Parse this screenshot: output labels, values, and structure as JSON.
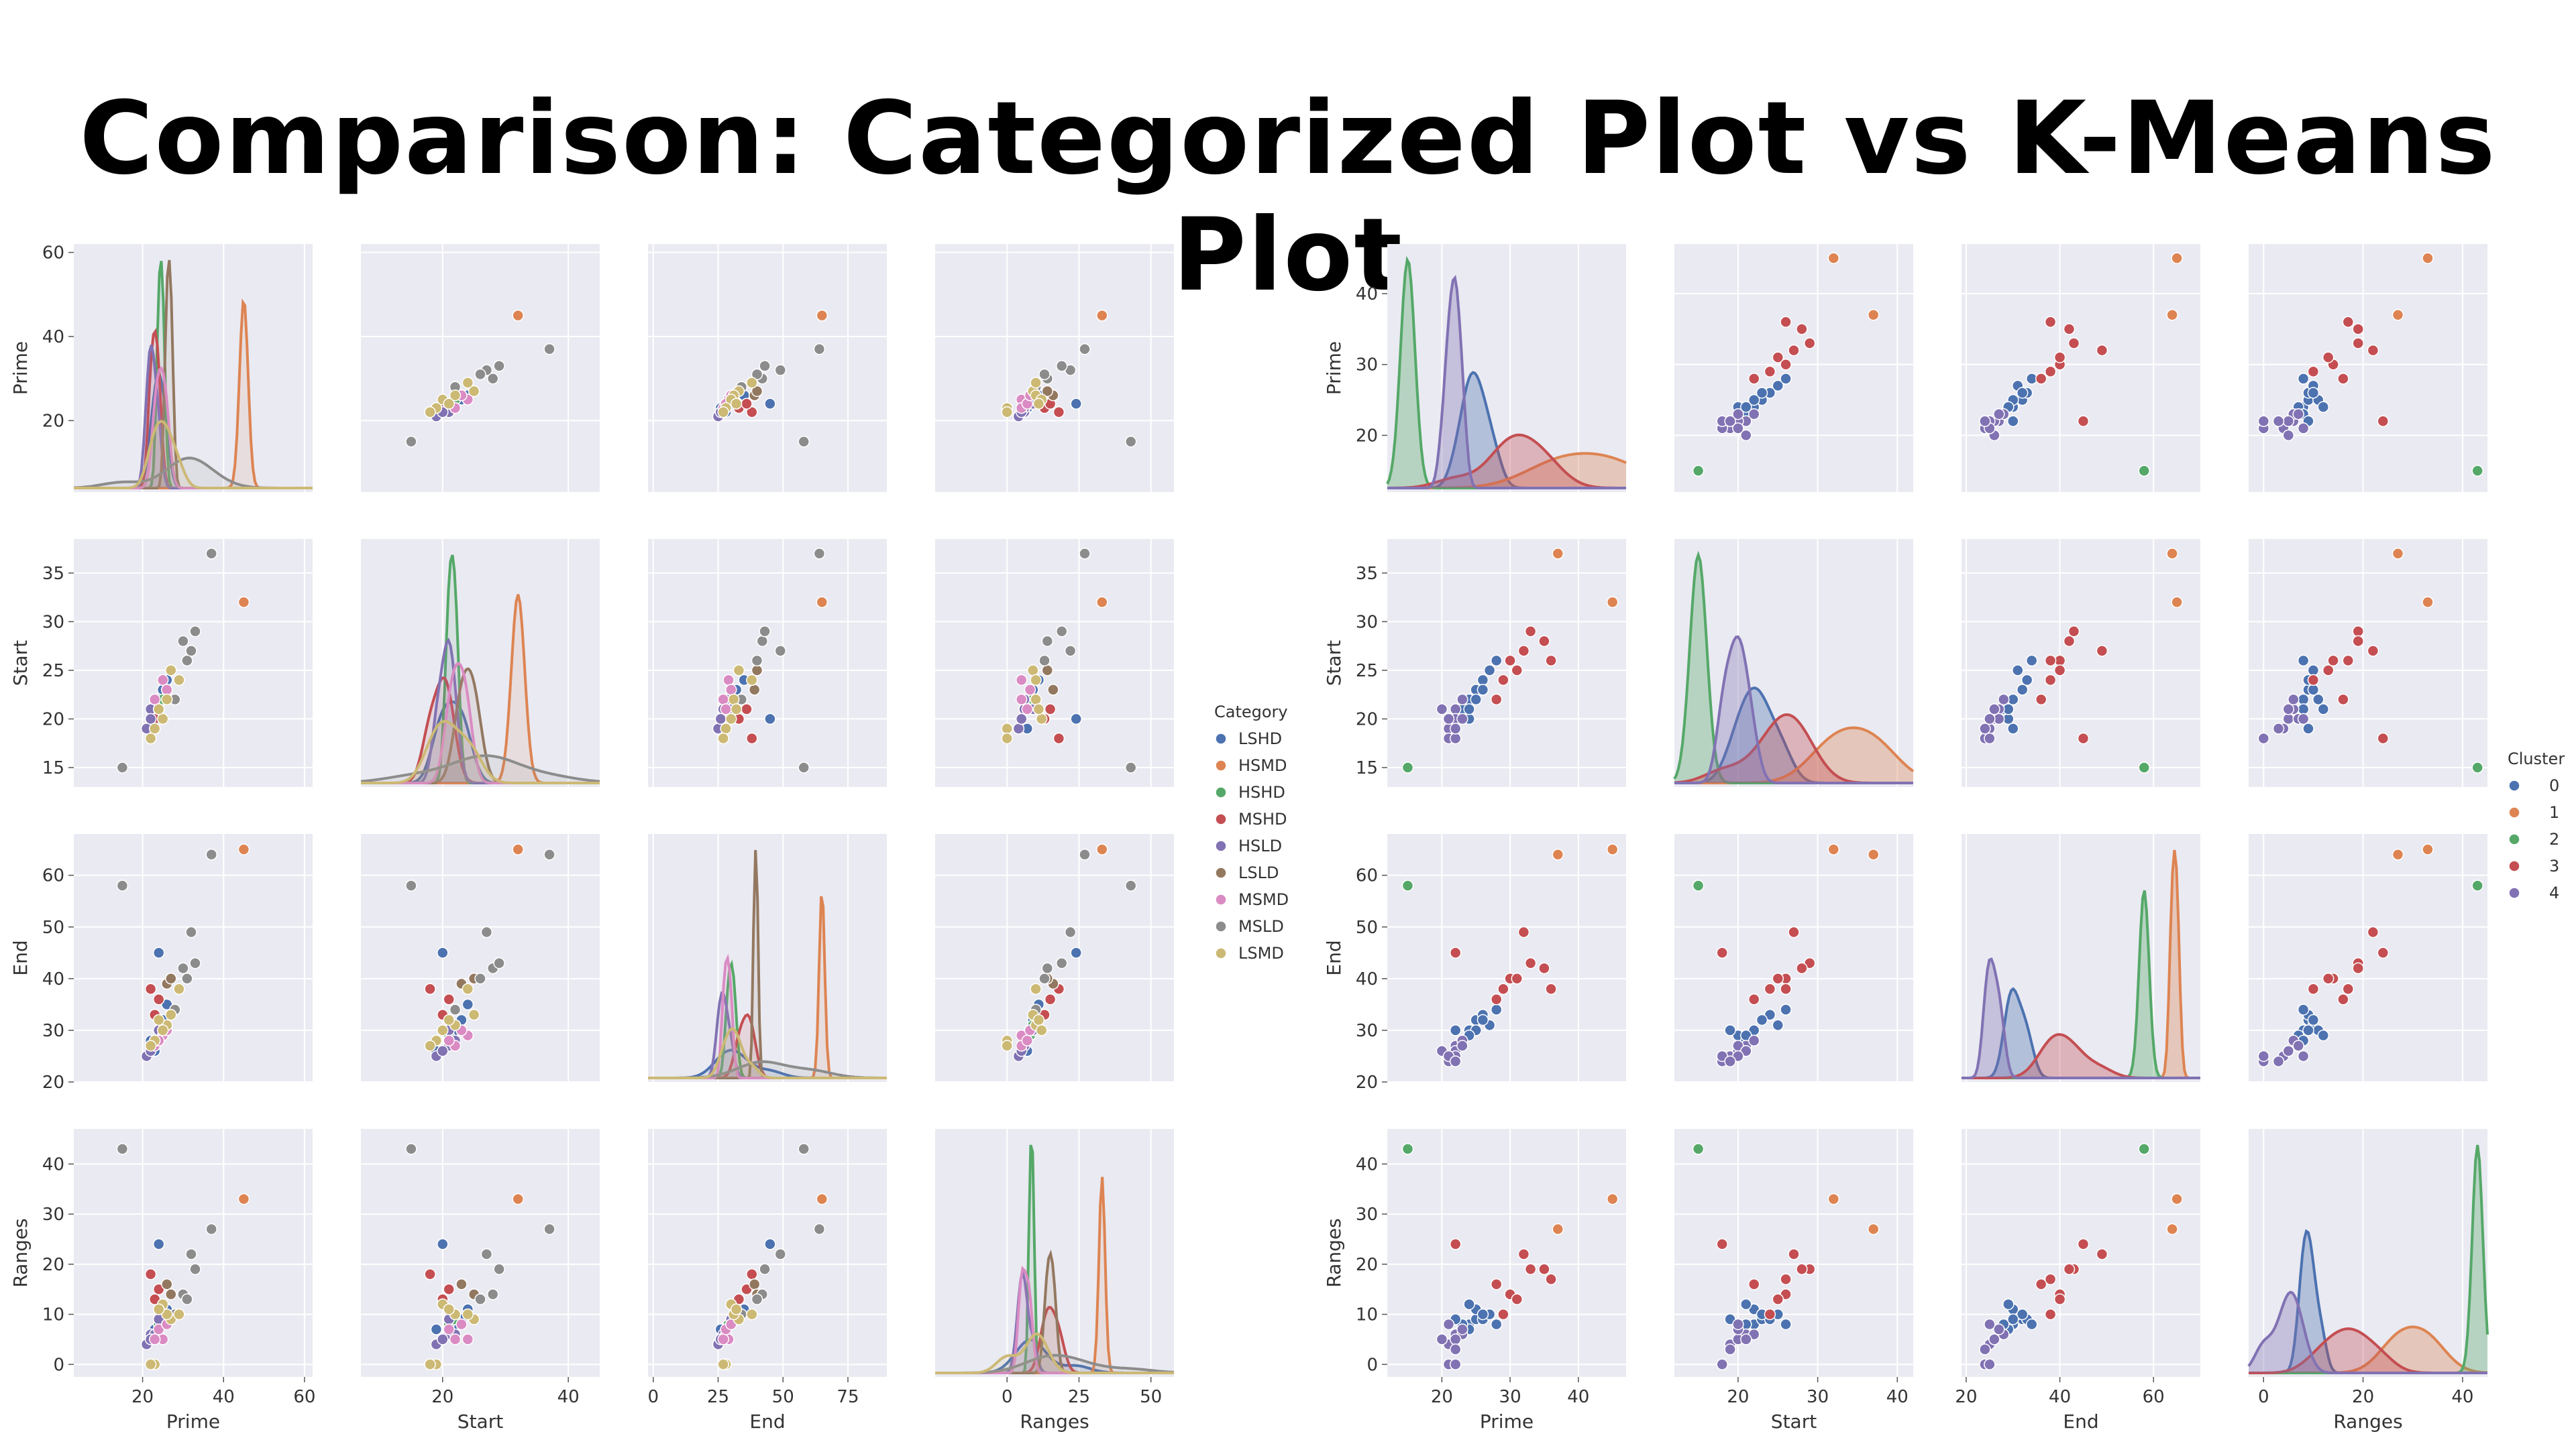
{
  "title": "Comparison: Categorized Plot vs K-Means Plot",
  "chart_data": [
    {
      "type": "scatter",
      "kind": "pairplot",
      "variables": [
        "Prime",
        "Start",
        "End",
        "Ranges"
      ],
      "limits": {
        "Prime": [
          3,
          62
        ],
        "Start": [
          13,
          38.5
        ],
        "End": [
          20,
          68
        ],
        "Ranges": [
          -2.5,
          47
        ]
      },
      "ticks": {
        "Prime": [
          20,
          40,
          60
        ],
        "Start": [
          15,
          20,
          25,
          30,
          35
        ],
        "End": [
          20,
          30,
          40,
          50,
          60
        ],
        "Ranges": [
          0,
          10,
          20,
          30,
          40
        ]
      },
      "xlims": {
        "Prime": [
          3,
          62
        ],
        "Start": [
          7,
          45
        ],
        "End": [
          -2,
          90
        ],
        "Ranges": [
          -25,
          58
        ]
      },
      "xticks": {
        "Prime": [
          20,
          40,
          60
        ],
        "Start": [
          20,
          40
        ],
        "End": [
          0,
          25,
          50,
          75
        ],
        "Ranges": [
          0,
          25,
          50
        ]
      },
      "legend": {
        "title": "Category",
        "placement": "right",
        "entries": [
          "LSHD",
          "HSMD",
          "HSHD",
          "MSHD",
          "HSLD",
          "LSLD",
          "MSMD",
          "MSLD",
          "LSMD"
        ]
      },
      "colors": [
        "#4c72b0",
        "#dd8452",
        "#55a868",
        "#c44e52",
        "#8172b3",
        "#937860",
        "#da8bc3",
        "#8c8c8c",
        "#ccb974"
      ],
      "points": [
        [
          24,
          22,
          30,
          8,
          0
        ],
        [
          25,
          23,
          32,
          9,
          0
        ],
        [
          24,
          20,
          45,
          24,
          0
        ],
        [
          23,
          19,
          26,
          7,
          0
        ],
        [
          22,
          21,
          28,
          6,
          0
        ],
        [
          26,
          24,
          35,
          11,
          0
        ],
        [
          45,
          32,
          65,
          33,
          1
        ],
        [
          24,
          21,
          29,
          8,
          2
        ],
        [
          25,
          22,
          31,
          9,
          2
        ],
        [
          22,
          18,
          38,
          18,
          3
        ],
        [
          23,
          20,
          33,
          13,
          3
        ],
        [
          24,
          21,
          36,
          15,
          3
        ],
        [
          21,
          19,
          25,
          4,
          4
        ],
        [
          22,
          21,
          27,
          6,
          4
        ],
        [
          23,
          22,
          28,
          6,
          4
        ],
        [
          24,
          21,
          30,
          9,
          4
        ],
        [
          22,
          20,
          26,
          5,
          4
        ],
        [
          26,
          23,
          39,
          16,
          5
        ],
        [
          27,
          25,
          40,
          14,
          5
        ],
        [
          25,
          24,
          29,
          5,
          6
        ],
        [
          23,
          22,
          27,
          5,
          6
        ],
        [
          24,
          21,
          28,
          7,
          6
        ],
        [
          26,
          23,
          30,
          8,
          6
        ],
        [
          37,
          37,
          64,
          27,
          7
        ],
        [
          15,
          15,
          58,
          43,
          7
        ],
        [
          30,
          28,
          42,
          14,
          7
        ],
        [
          32,
          27,
          49,
          22,
          7
        ],
        [
          33,
          29,
          43,
          19,
          7
        ],
        [
          31,
          26,
          40,
          13,
          7
        ],
        [
          28,
          22,
          34,
          10,
          7
        ],
        [
          27,
          25,
          33,
          9,
          8
        ],
        [
          29,
          24,
          38,
          10,
          8
        ],
        [
          26,
          22,
          31,
          10,
          8
        ],
        [
          25,
          20,
          30,
          12,
          8
        ],
        [
          24,
          21,
          32,
          11,
          8
        ],
        [
          23,
          19,
          28,
          0,
          8
        ],
        [
          22,
          18,
          27,
          0,
          8
        ]
      ],
      "xlabels": [
        "Prime",
        "Start",
        "End",
        "Ranges"
      ],
      "ylabels": [
        "Prime",
        "Start",
        "End",
        "Ranges"
      ]
    },
    {
      "type": "scatter",
      "kind": "pairplot",
      "variables": [
        "Prime",
        "Start",
        "End",
        "Ranges"
      ],
      "limits": {
        "Prime": [
          12,
          47
        ],
        "Start": [
          13,
          38.5
        ],
        "End": [
          20,
          68
        ],
        "Ranges": [
          -2.5,
          47
        ]
      },
      "ticks": {
        "Prime": [
          20,
          30,
          40
        ],
        "Start": [
          15,
          20,
          25,
          30,
          35
        ],
        "End": [
          20,
          30,
          40,
          50,
          60
        ],
        "Ranges": [
          0,
          10,
          20,
          30,
          40
        ]
      },
      "xlims": {
        "Prime": [
          12,
          47
        ],
        "Start": [
          12,
          42
        ],
        "End": [
          19,
          70
        ],
        "Ranges": [
          -3,
          45
        ]
      },
      "xticks": {
        "Prime": [
          20,
          30,
          40
        ],
        "Start": [
          20,
          30,
          40
        ],
        "End": [
          20,
          40,
          60
        ],
        "Ranges": [
          0,
          20,
          40
        ]
      },
      "legend": {
        "title": "Cluster",
        "placement": "right",
        "entries": [
          "0",
          "1",
          "2",
          "3",
          "4"
        ]
      },
      "colors": [
        "#4c72b0",
        "#dd8452",
        "#55a868",
        "#c44e52",
        "#8172b3"
      ],
      "points": [
        [
          24,
          22,
          30,
          8,
          0
        ],
        [
          25,
          23,
          32,
          9,
          0
        ],
        [
          24,
          20,
          29,
          7,
          0
        ],
        [
          26,
          24,
          33,
          9,
          0
        ],
        [
          23,
          21,
          28,
          8,
          0
        ],
        [
          27,
          25,
          31,
          10,
          0
        ],
        [
          25,
          22,
          30,
          11,
          0
        ],
        [
          24,
          21,
          29,
          12,
          0
        ],
        [
          26,
          23,
          32,
          10,
          0
        ],
        [
          22,
          19,
          30,
          9,
          0
        ],
        [
          28,
          26,
          34,
          8,
          0
        ],
        [
          37,
          37,
          64,
          27,
          1
        ],
        [
          45,
          32,
          65,
          33,
          1
        ],
        [
          15,
          15,
          58,
          43,
          2
        ],
        [
          29,
          24,
          38,
          10,
          3
        ],
        [
          30,
          26,
          40,
          14,
          3
        ],
        [
          32,
          27,
          49,
          22,
          3
        ],
        [
          33,
          29,
          43,
          19,
          3
        ],
        [
          31,
          25,
          40,
          13,
          3
        ],
        [
          28,
          22,
          36,
          16,
          3
        ],
        [
          22,
          18,
          45,
          24,
          3
        ],
        [
          35,
          28,
          42,
          19,
          3
        ],
        [
          36,
          26,
          38,
          17,
          3
        ],
        [
          21,
          19,
          25,
          4,
          4
        ],
        [
          22,
          21,
          27,
          6,
          4
        ],
        [
          23,
          22,
          28,
          6,
          4
        ],
        [
          22,
          20,
          26,
          5,
          4
        ],
        [
          21,
          18,
          24,
          0,
          4
        ],
        [
          22,
          18,
          25,
          0,
          4
        ],
        [
          23,
          20,
          27,
          7,
          4
        ],
        [
          20,
          21,
          26,
          5,
          4
        ],
        [
          21,
          20,
          25,
          8,
          4
        ],
        [
          22,
          19,
          24,
          3,
          4
        ]
      ],
      "xlabels": [
        "Prime",
        "Start",
        "End",
        "Ranges"
      ],
      "ylabels": [
        "Prime",
        "Start",
        "End",
        "Ranges"
      ]
    }
  ]
}
